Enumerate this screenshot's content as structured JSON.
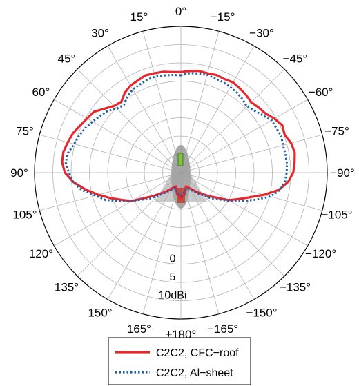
{
  "chart_data": {
    "type": "polar-line",
    "angle_unit": "degrees",
    "angle_zero": "top",
    "angle_direction": "positive counter-clockwise (left side)",
    "angle_tick_labels": [
      {
        "deg": 0,
        "label": "0°"
      },
      {
        "deg": 15,
        "label": "15°"
      },
      {
        "deg": 30,
        "label": "30°"
      },
      {
        "deg": 45,
        "label": "45°"
      },
      {
        "deg": 60,
        "label": "60°"
      },
      {
        "deg": 75,
        "label": "75°"
      },
      {
        "deg": 90,
        "label": "90°"
      },
      {
        "deg": 105,
        "label": "105°"
      },
      {
        "deg": 120,
        "label": "120°"
      },
      {
        "deg": 135,
        "label": "135°"
      },
      {
        "deg": 150,
        "label": "150°"
      },
      {
        "deg": 165,
        "label": "165°"
      },
      {
        "deg": 180,
        "label": "±180°"
      },
      {
        "deg": -165,
        "label": "−165°"
      },
      {
        "deg": -150,
        "label": "−150°"
      },
      {
        "deg": -135,
        "label": "−135°"
      },
      {
        "deg": -120,
        "label": "−120°"
      },
      {
        "deg": -105,
        "label": "−105°"
      },
      {
        "deg": -90,
        "label": "−90°"
      },
      {
        "deg": -75,
        "label": "−75°"
      },
      {
        "deg": -60,
        "label": "−60°"
      },
      {
        "deg": -45,
        "label": "−45°"
      },
      {
        "deg": -30,
        "label": "−30°"
      },
      {
        "deg": -15,
        "label": "−15°"
      }
    ],
    "radial_axis": {
      "unit": "dBi",
      "min": -25,
      "max": 15,
      "rings": [
        -25,
        -20,
        -15,
        -10,
        -5,
        0,
        5,
        10,
        15
      ],
      "labels": [
        {
          "value": 0,
          "label": "0"
        },
        {
          "value": 5,
          "label": "5"
        },
        {
          "value": 10,
          "label": "10dBi"
        }
      ]
    },
    "grid": true,
    "legend_position": "bottom-center",
    "series": [
      {
        "name": "C2C2, CFC−roof",
        "color": "#e8262b",
        "style": "solid",
        "points": [
          [
            0,
            2.5
          ],
          [
            -5,
            2.9
          ],
          [
            -10,
            3.2
          ],
          [
            -15,
            3.1
          ],
          [
            -20,
            3.4
          ],
          [
            -25,
            3.2
          ],
          [
            -30,
            3.5
          ],
          [
            -35,
            3.1
          ],
          [
            -40,
            2.7
          ],
          [
            -45,
            2.2
          ],
          [
            -50,
            2.7
          ],
          [
            -55,
            3.2
          ],
          [
            -60,
            4.5
          ],
          [
            -65,
            5.6
          ],
          [
            -70,
            5.2
          ],
          [
            -75,
            6.2
          ],
          [
            -80,
            6.6
          ],
          [
            -85,
            6.2
          ],
          [
            -90,
            5.7
          ],
          [
            -95,
            4.4
          ],
          [
            -100,
            2.2
          ],
          [
            -105,
            -1.5
          ],
          [
            -110,
            -5.2
          ],
          [
            -115,
            -7.8
          ],
          [
            -120,
            -10
          ],
          [
            -130,
            -15
          ],
          [
            -140,
            -18
          ],
          [
            -150,
            -20
          ],
          [
            -160,
            -21
          ],
          [
            -170,
            -19
          ],
          [
            180,
            -18
          ],
          [
            170,
            -19
          ],
          [
            160,
            -21
          ],
          [
            150,
            -20
          ],
          [
            140,
            -18
          ],
          [
            130,
            -15
          ],
          [
            120,
            -9.5
          ],
          [
            115,
            -7.3
          ],
          [
            110,
            -4.6
          ],
          [
            105,
            -1.6
          ],
          [
            100,
            1.5
          ],
          [
            95,
            4.5
          ],
          [
            90,
            6.7
          ],
          [
            85,
            7.6
          ],
          [
            80,
            7.6
          ],
          [
            75,
            7.0
          ],
          [
            70,
            6.4
          ],
          [
            65,
            5.4
          ],
          [
            60,
            4.6
          ],
          [
            55,
            4.0
          ],
          [
            50,
            2.2
          ],
          [
            45,
            0.8
          ],
          [
            40,
            0.3
          ],
          [
            35,
            1.7
          ],
          [
            30,
            2.5
          ],
          [
            25,
            2.8
          ],
          [
            20,
            3.3
          ],
          [
            15,
            3.1
          ],
          [
            10,
            3.0
          ],
          [
            5,
            2.6
          ]
        ]
      },
      {
        "name": "C2C2, Al−sheet",
        "color": "#1f5fa6",
        "style": "dotted",
        "points": [
          [
            0,
            1.6
          ],
          [
            -5,
            2.3
          ],
          [
            -10,
            2.5
          ],
          [
            -15,
            2.7
          ],
          [
            -20,
            2.4
          ],
          [
            -25,
            2.3
          ],
          [
            -30,
            2.0
          ],
          [
            -35,
            1.7
          ],
          [
            -40,
            1.2
          ],
          [
            -45,
            0.5
          ],
          [
            -50,
            1.3
          ],
          [
            -55,
            2.3
          ],
          [
            -60,
            3.6
          ],
          [
            -65,
            3.8
          ],
          [
            -70,
            4.2
          ],
          [
            -75,
            3.9
          ],
          [
            -80,
            4.0
          ],
          [
            -85,
            4.1
          ],
          [
            -90,
            3.9
          ],
          [
            -95,
            3.6
          ],
          [
            -100,
            2.5
          ],
          [
            -105,
            0.3
          ],
          [
            -110,
            -3.3
          ],
          [
            -115,
            -6.7
          ],
          [
            -120,
            -9.5
          ],
          [
            -130,
            -14
          ],
          [
            -140,
            -17.5
          ],
          [
            -150,
            -19.5
          ],
          [
            -160,
            -20.5
          ],
          [
            -170,
            -19.5
          ],
          [
            180,
            -18.5
          ],
          [
            170,
            -19.5
          ],
          [
            160,
            -20.5
          ],
          [
            150,
            -19.5
          ],
          [
            140,
            -17.5
          ],
          [
            130,
            -14
          ],
          [
            120,
            -9.5
          ],
          [
            115,
            -6.7
          ],
          [
            110,
            -3.1
          ],
          [
            105,
            -0.8
          ],
          [
            100,
            2.5
          ],
          [
            95,
            4.6
          ],
          [
            90,
            5.6
          ],
          [
            85,
            6.6
          ],
          [
            80,
            6.3
          ],
          [
            75,
            5.2
          ],
          [
            70,
            4.6
          ],
          [
            65,
            3.8
          ],
          [
            60,
            2.9
          ],
          [
            55,
            2.0
          ],
          [
            50,
            1.2
          ],
          [
            45,
            -0.3
          ],
          [
            40,
            -0.8
          ],
          [
            35,
            0.4
          ],
          [
            30,
            1.3
          ],
          [
            25,
            1.6
          ],
          [
            20,
            2.0
          ],
          [
            15,
            2.2
          ],
          [
            10,
            2.0
          ],
          [
            5,
            1.8
          ]
        ]
      }
    ]
  },
  "legend": {
    "items": [
      {
        "label": "C2C2, CFC−roof",
        "color": "#e8262b",
        "style": "solid"
      },
      {
        "label": "C2C2, Al−sheet",
        "color": "#1f5fa6",
        "style": "dotted"
      }
    ]
  }
}
